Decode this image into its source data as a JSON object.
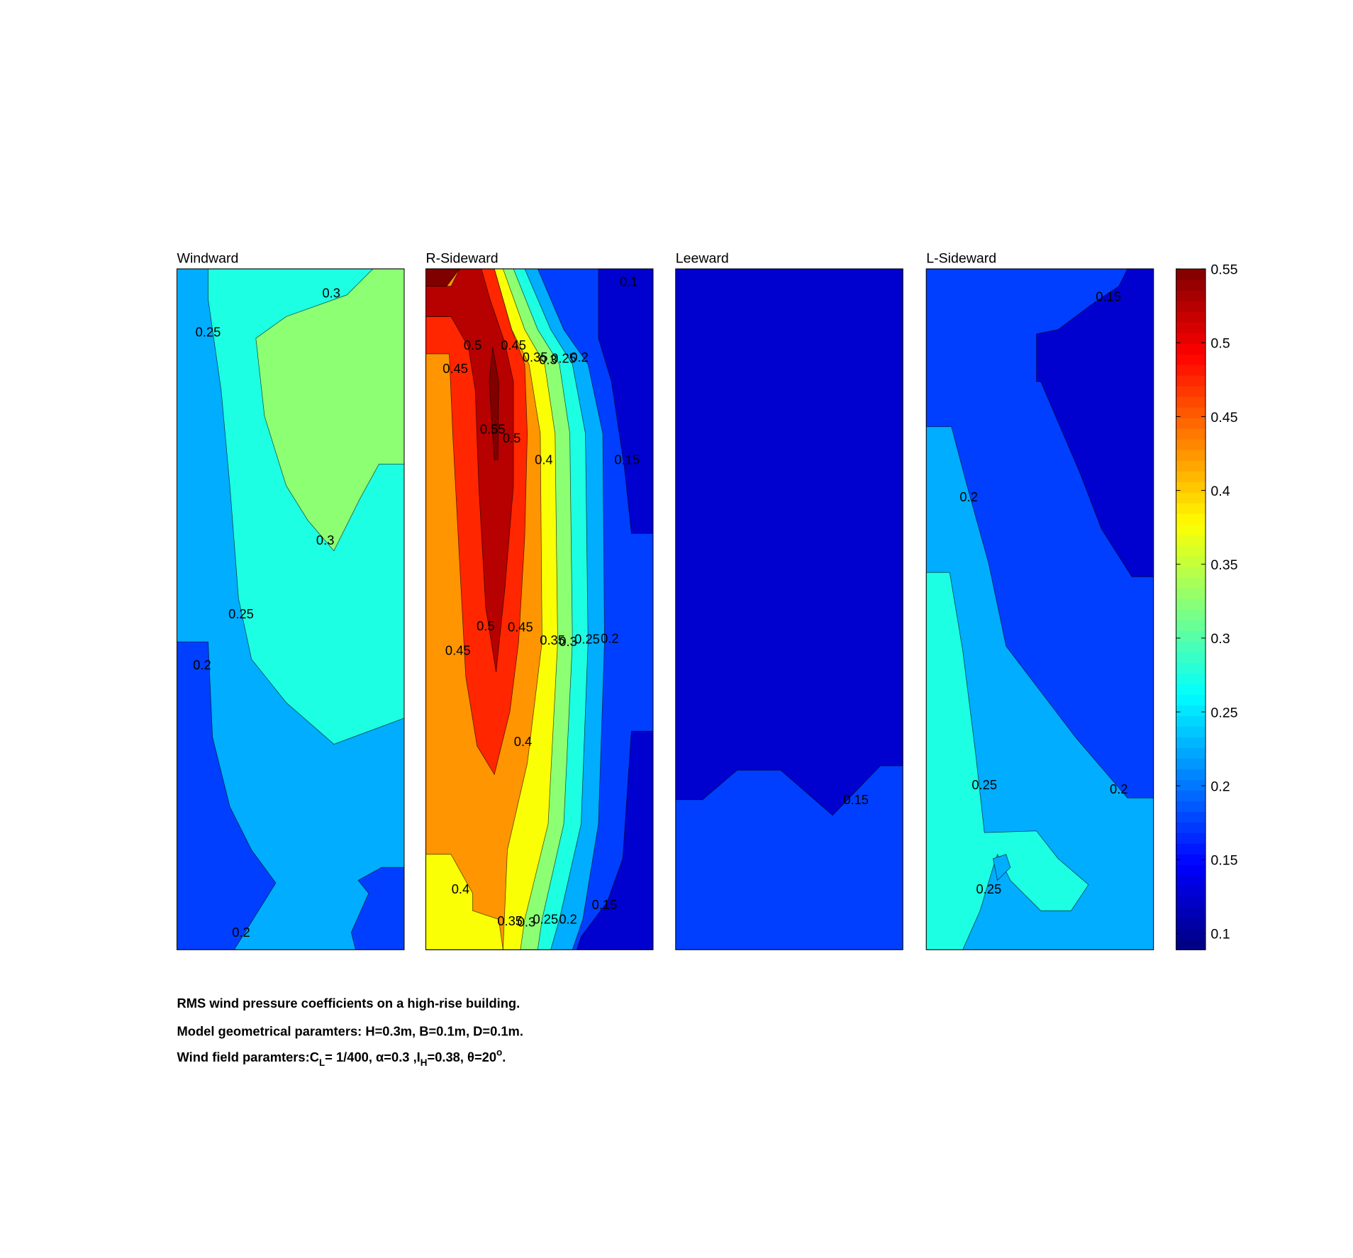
{
  "chart_data": {
    "type": "contour",
    "panels": [
      {
        "title": "Windward",
        "regions": [
          0.15,
          0.2,
          0.25,
          0.3
        ],
        "contour_labels": [
          0.3,
          0.25,
          0.3,
          0.25,
          0.2,
          0.2
        ]
      },
      {
        "title": "R-Sideward",
        "regions": [
          0.15,
          0.1,
          0.1,
          0.2,
          0.25,
          0.3,
          0.35,
          0.4,
          0.35,
          0.45,
          0.5,
          0.55,
          0.55
        ],
        "contour_labels": [
          0.1,
          0.5,
          0.45,
          0.45,
          0.35,
          0.3,
          0.25,
          0.2,
          0.55,
          0.5,
          0.4,
          0.15,
          0.5,
          0.45,
          0.45,
          0.35,
          0.3,
          0.25,
          0.2,
          0.4,
          0.4,
          0.35,
          0.3,
          0.25,
          0.2,
          0.15
        ]
      },
      {
        "title": "Leeward",
        "regions": [
          0.15,
          0.1
        ],
        "contour_labels": [
          0.15
        ]
      },
      {
        "title": "L-Sideward",
        "regions": [
          0.2,
          0.15,
          0.1,
          0.25,
          0.2
        ],
        "contour_labels": [
          0.15,
          0.2,
          0.25,
          0.2,
          0.25
        ]
      }
    ],
    "colorbar": {
      "lim": [
        0.089,
        0.55
      ],
      "ticks": [
        0.1,
        0.15,
        0.2,
        0.25,
        0.3,
        0.35,
        0.4,
        0.45,
        0.5,
        0.55
      ]
    },
    "caption": [
      "RMS wind pressure coefficients on a high-rise building.",
      "Model geometrical paramters: H=0.3m, B=0.1m, D=0.1m.",
      [
        "Wind field paramters:C",
        "L",
        "= 1/400, α=0.3 ,I",
        "H",
        "=0.38, θ=20",
        "o",
        "."
      ]
    ]
  }
}
